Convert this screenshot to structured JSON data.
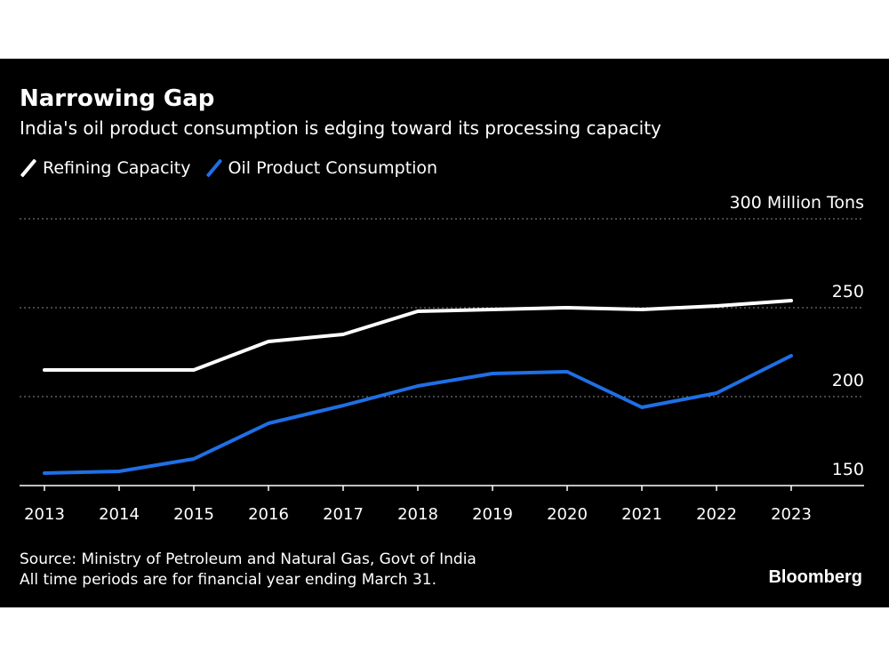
{
  "colors": {
    "background": "#000000",
    "refining": "#ffffff",
    "consumption": "#1f6fe5",
    "grid": "#8a8a8a"
  },
  "chart_data": {
    "type": "line",
    "title": "Narrowing Gap",
    "subtitle": "India's oil product consumption is edging toward its processing capacity",
    "x": [
      "2013",
      "2014",
      "2015",
      "2016",
      "2017",
      "2018",
      "2019",
      "2020",
      "2021",
      "2022",
      "2023"
    ],
    "series": [
      {
        "name": "Refining Capacity",
        "values": [
          215,
          215,
          215,
          231,
          235,
          248,
          249,
          250,
          249,
          251,
          254
        ]
      },
      {
        "name": "Oil Product Consumption",
        "values": [
          157,
          158,
          165,
          185,
          195,
          206,
          213,
          214,
          194,
          202,
          223
        ]
      }
    ],
    "y_unit_label": "300 Million Tons",
    "y_ticks": [
      {
        "value": 150,
        "label": "150"
      },
      {
        "value": 200,
        "label": "200"
      },
      {
        "value": 250,
        "label": "250"
      },
      {
        "value": 300,
        "label": "300 Million Tons"
      }
    ],
    "ylim": [
      150,
      300
    ],
    "grid": true,
    "legend_position": "top-left",
    "source": "Source: Ministry of Petroleum and Natural Gas, Govt of India",
    "note": "All time periods are for financial year ending March 31.",
    "brand": "Bloomberg"
  }
}
